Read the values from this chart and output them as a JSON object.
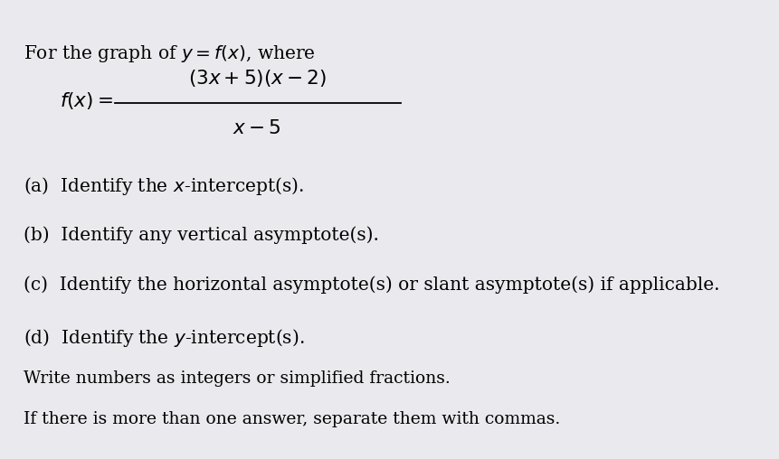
{
  "bg_color": "#eaeaee",
  "bottom_bar_color": "#b8b8c4",
  "title_line": "For the graph of $y=f(x)$, where",
  "formula_left": "$f(x)=$",
  "numerator": "$(3x+5)(x-2)$",
  "denominator": "$x-5$",
  "part_a": "(a)  Identify the $x$-intercept(s).",
  "part_b": "(b)  Identify any vertical asymptote(s).",
  "part_c": "(c)  Identify the horizontal asymptote(s) or slant asymptote(s) if applicable.",
  "part_d": "(d)  Identify the $y$-intercept(s).",
  "note1": "Write numbers as integers or simplified fractions.",
  "note2": "If there is more than one answer, separate them with commas.",
  "font_size_title": 14.5,
  "font_size_formula": 15.5,
  "font_size_parts": 14.5,
  "font_size_notes": 13.5
}
